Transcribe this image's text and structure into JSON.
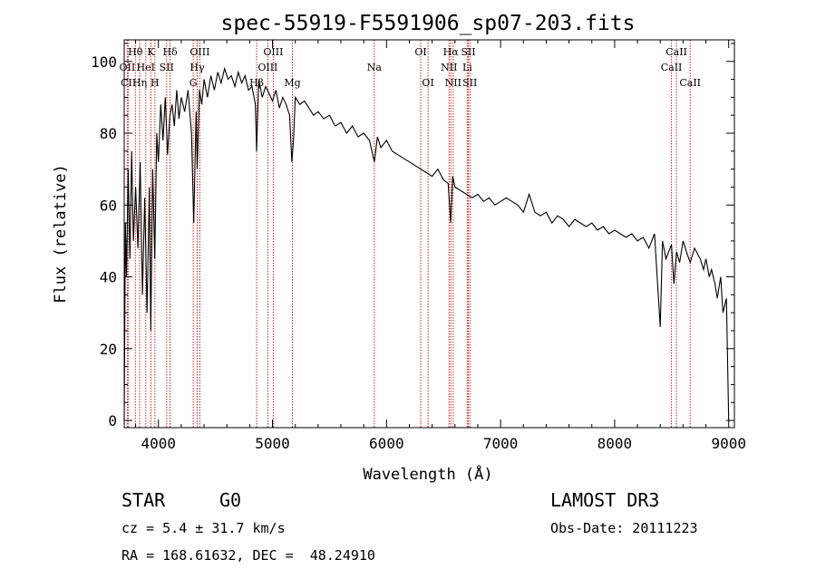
{
  "chart_data": {
    "type": "line",
    "title": "spec-55919-F5591906_sp07-203.fits",
    "xlabel": "Wavelength (Å)",
    "ylabel": "Flux (relative)",
    "xlim": [
      3700,
      9050
    ],
    "ylim": [
      -2,
      106
    ],
    "xticks": [
      4000,
      5000,
      6000,
      7000,
      8000,
      9000
    ],
    "yticks": [
      0,
      20,
      40,
      60,
      80,
      100
    ],
    "series": [
      {
        "name": "flux",
        "x": [
          3700,
          3710,
          3720,
          3735,
          3750,
          3765,
          3780,
          3800,
          3820,
          3840,
          3860,
          3880,
          3900,
          3920,
          3933,
          3950,
          3968,
          3985,
          4000,
          4020,
          4040,
          4060,
          4080,
          4101,
          4120,
          4140,
          4160,
          4180,
          4200,
          4230,
          4260,
          4290,
          4310,
          4330,
          4340,
          4360,
          4380,
          4400,
          4430,
          4460,
          4490,
          4520,
          4550,
          4580,
          4610,
          4640,
          4670,
          4700,
          4730,
          4760,
          4790,
          4820,
          4850,
          4861,
          4880,
          4910,
          4940,
          4970,
          5000,
          5030,
          5060,
          5090,
          5120,
          5150,
          5170,
          5184,
          5200,
          5240,
          5280,
          5320,
          5360,
          5400,
          5450,
          5500,
          5550,
          5600,
          5650,
          5700,
          5750,
          5800,
          5850,
          5893,
          5920,
          5950,
          6000,
          6050,
          6100,
          6150,
          6200,
          6250,
          6300,
          6350,
          6400,
          6450,
          6500,
          6540,
          6563,
          6580,
          6600,
          6650,
          6700,
          6750,
          6800,
          6850,
          6900,
          6950,
          7000,
          7050,
          7100,
          7150,
          7200,
          7250,
          7300,
          7350,
          7400,
          7450,
          7500,
          7550,
          7600,
          7650,
          7700,
          7750,
          7800,
          7850,
          7900,
          7950,
          8000,
          8050,
          8100,
          8150,
          8200,
          8250,
          8300,
          8350,
          8400,
          8420,
          8450,
          8498,
          8520,
          8542,
          8570,
          8600,
          8640,
          8662,
          8700,
          8750,
          8780,
          8800,
          8830,
          8850,
          8880,
          8900,
          8930,
          8950,
          8980,
          9000
        ],
        "values": [
          0,
          55,
          40,
          70,
          45,
          75,
          50,
          65,
          48,
          72,
          35,
          62,
          30,
          65,
          25,
          70,
          45,
          80,
          72,
          88,
          78,
          90,
          74,
          85,
          88,
          82,
          92,
          84,
          90,
          86,
          92,
          80,
          55,
          86,
          70,
          92,
          88,
          95,
          90,
          96,
          92,
          97,
          94,
          98,
          95,
          96,
          93,
          97,
          94,
          96,
          92,
          93,
          88,
          75,
          95,
          90,
          93,
          91,
          89,
          92,
          87,
          90,
          88,
          85,
          72,
          78,
          90,
          88,
          89,
          87,
          85,
          86,
          84,
          85,
          82,
          83,
          80,
          82,
          79,
          80,
          78,
          72,
          79,
          76,
          78,
          75,
          74,
          73,
          72,
          71,
          70,
          69,
          68,
          70,
          67,
          66,
          55,
          68,
          65,
          64,
          63,
          62,
          63,
          61,
          62,
          60,
          61,
          62,
          61,
          60,
          58,
          63,
          58,
          57,
          58,
          55,
          57,
          56,
          54,
          56,
          55,
          54,
          55,
          53,
          54,
          52,
          53,
          52,
          51,
          52,
          50,
          51,
          48,
          52,
          26,
          50,
          45,
          49,
          38,
          47,
          44,
          50,
          46,
          44,
          48,
          45,
          42,
          45,
          40,
          42,
          38,
          34,
          40,
          30,
          34,
          0
        ]
      }
    ],
    "spectral_lines": [
      {
        "label": "Hθ",
        "x": 3798,
        "row": 1
      },
      {
        "label": "OII",
        "x": 3727,
        "row": 2
      },
      {
        "label": "CII",
        "x": 3737,
        "row": 3
      },
      {
        "label": "Hη",
        "x": 3835,
        "row": 3
      },
      {
        "label": "HeI",
        "x": 3889,
        "row": 2
      },
      {
        "label": "K",
        "x": 3934,
        "row": 1
      },
      {
        "label": "H",
        "x": 3969,
        "row": 3
      },
      {
        "label": "SII",
        "x": 4072,
        "row": 2
      },
      {
        "label": "Hδ",
        "x": 4102,
        "row": 1
      },
      {
        "label": "OIII",
        "x": 4363,
        "row": 1
      },
      {
        "label": "Hγ",
        "x": 4340,
        "row": 2
      },
      {
        "label": "G",
        "x": 4305,
        "row": 3
      },
      {
        "label": "OIII",
        "x": 5007,
        "row": 1
      },
      {
        "label": "OIII",
        "x": 4959,
        "row": 2
      },
      {
        "label": "Hβ",
        "x": 4861,
        "row": 3
      },
      {
        "label": "Mg",
        "x": 5175,
        "row": 3
      },
      {
        "label": "Na",
        "x": 5893,
        "row": 2
      },
      {
        "label": "OI",
        "x": 6300,
        "row": 1
      },
      {
        "label": "OI",
        "x": 6364,
        "row": 3
      },
      {
        "label": "Hα",
        "x": 6563,
        "row": 1
      },
      {
        "label": "NII",
        "x": 6548,
        "row": 2
      },
      {
        "label": "NII",
        "x": 6584,
        "row": 3
      },
      {
        "label": "SII",
        "x": 6717,
        "row": 1
      },
      {
        "label": "Li",
        "x": 6708,
        "row": 2
      },
      {
        "label": "SII",
        "x": 6731,
        "row": 3
      },
      {
        "label": "CaII",
        "x": 8542,
        "row": 1
      },
      {
        "label": "CaII",
        "x": 8498,
        "row": 2
      },
      {
        "label": "CaII",
        "x": 8662,
        "row": 3
      }
    ]
  },
  "info": {
    "class": "STAR",
    "subclass": "G0",
    "survey": "LAMOST DR3",
    "cz": "cz = 5.4 ± 31.7 km/s",
    "obs_date": "Obs-Date: 20111223",
    "coords": "RA = 168.61632, DEC =  48.24910"
  }
}
